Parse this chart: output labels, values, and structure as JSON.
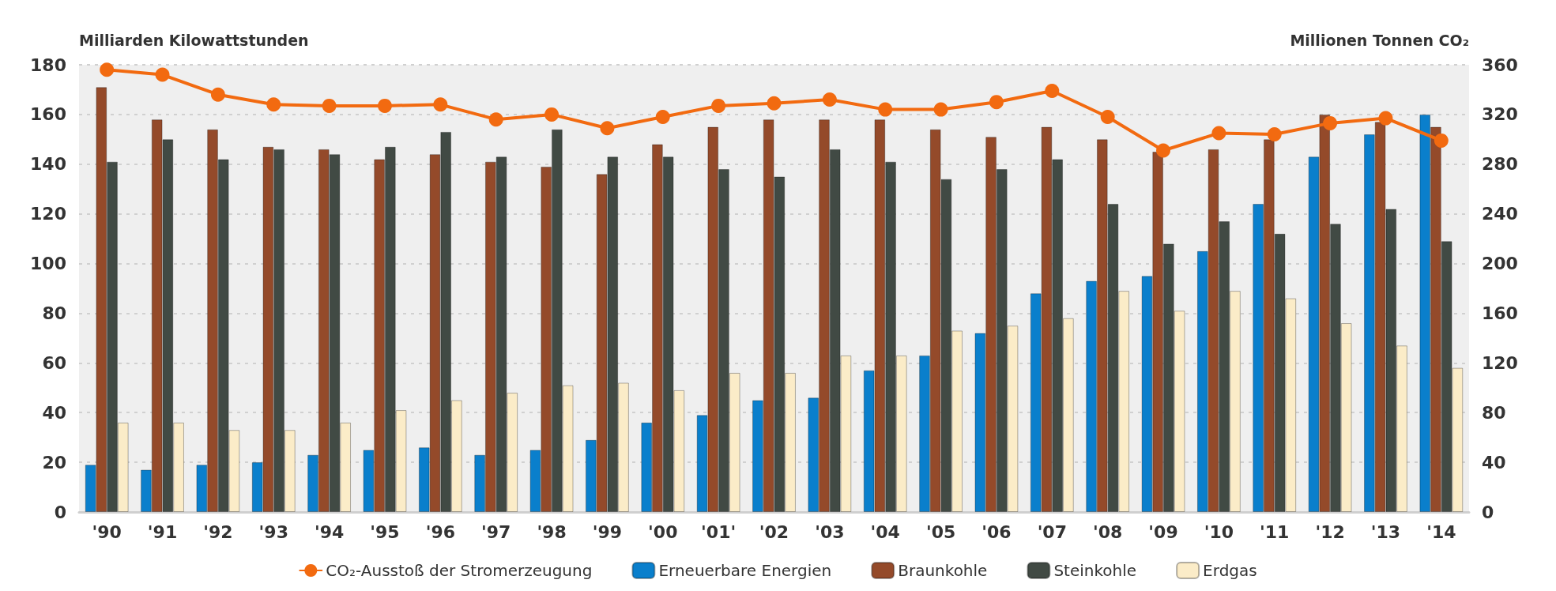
{
  "chart_data": {
    "type": "bar",
    "ylabel": "Milliarden Kilowattstunden",
    "y2label": "Millionen Tonnen CO₂",
    "categories": [
      "'90",
      "'91",
      "'92",
      "'93",
      "'94",
      "'95",
      "'96",
      "'97",
      "'98",
      "'99",
      "'00",
      "'01'",
      "'02",
      "'03",
      "'04",
      "'05",
      "'06",
      "'07",
      "'08",
      "'09",
      "'10",
      "'11",
      "'12",
      "'13",
      "'14"
    ],
    "series": [
      {
        "name": "CO₂-Ausstoß der Stromerzeugung",
        "type": "line",
        "axis": "y2",
        "marker": "circle",
        "line_style": "solid",
        "color": "#f26a10",
        "values": [
          356,
          352,
          336,
          328,
          327,
          327,
          328,
          316,
          320,
          309,
          318,
          327,
          329,
          332,
          324,
          324,
          330,
          339,
          318,
          291,
          305,
          304,
          313,
          317,
          299
        ]
      },
      {
        "name": "Erneuerbare Energien",
        "color": "#0a7fcc",
        "values": [
          19,
          17,
          19,
          20,
          23,
          25,
          26,
          23,
          25,
          29,
          36,
          39,
          45,
          46,
          57,
          63,
          72,
          88,
          93,
          95,
          105,
          124,
          143,
          152,
          160
        ]
      },
      {
        "name": "Braunkohle",
        "color": "#944a2a",
        "values": [
          171,
          158,
          154,
          147,
          146,
          142,
          144,
          141,
          139,
          136,
          148,
          155,
          158,
          158,
          158,
          154,
          151,
          155,
          150,
          145,
          146,
          150,
          160,
          157,
          155
        ]
      },
      {
        "name": "Steinkohle",
        "color": "#414a44",
        "values": [
          141,
          150,
          142,
          146,
          144,
          147,
          153,
          143,
          154,
          143,
          143,
          138,
          135,
          146,
          141,
          134,
          138,
          142,
          124,
          108,
          117,
          112,
          116,
          122,
          109
        ]
      },
      {
        "name": "Erdgas",
        "color": "#fbecc8",
        "values": [
          36,
          36,
          33,
          33,
          36,
          41,
          45,
          48,
          51,
          52,
          49,
          56,
          56,
          63,
          63,
          73,
          75,
          78,
          89,
          81,
          89,
          86,
          76,
          67,
          58
        ]
      }
    ],
    "ylim": [
      0,
      180
    ],
    "yticks": [
      0,
      20,
      40,
      60,
      80,
      100,
      120,
      140,
      160,
      180
    ],
    "y2lim": [
      0,
      360
    ],
    "y2ticks": [
      0,
      40,
      80,
      120,
      160,
      200,
      240,
      280,
      320,
      360
    ],
    "grid": "y",
    "legend": "bottom"
  }
}
